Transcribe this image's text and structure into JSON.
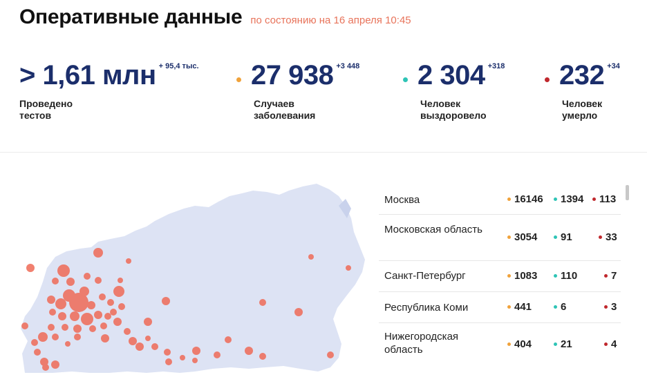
{
  "header": {
    "title": "Оперативные данные",
    "as_of": "по состоянию на 16 апреля 10:45"
  },
  "stats": [
    {
      "value": "> 1,61 млн",
      "delta": "+ 95,4 тыс.",
      "label1": "Проведено",
      "label2": "тестов",
      "dot_color": ""
    },
    {
      "value": "27 938",
      "delta": "+3 448",
      "label1": "Случаев",
      "label2": "заболевания",
      "dot_color": "#f0a23b"
    },
    {
      "value": "2 304",
      "delta": "+318",
      "label1": "Человек",
      "label2": "выздоровело",
      "dot_color": "#2ec4b6"
    },
    {
      "value": "232",
      "delta": "+34",
      "label1": "Человек",
      "label2": "умерло",
      "dot_color": "#c0282d"
    }
  ],
  "colors": {
    "accent_title": "#e8735a",
    "stat_number": "#1b2e6b",
    "cases": "#f0a23b",
    "recovered": "#2ec4b6",
    "deaths": "#c0282d",
    "map_land": "#dde3f4",
    "map_bubble": "#ef6b57"
  },
  "map": {
    "icon": "russia-map"
  },
  "regions": [
    {
      "name": "Москва",
      "cases": "16146",
      "recovered": "1394",
      "deaths": "113"
    },
    {
      "name": "Московская область",
      "cases": "3054",
      "recovered": "91",
      "deaths": "33"
    },
    {
      "name": "Санкт-Петербург",
      "cases": "1083",
      "recovered": "110",
      "deaths": "7"
    },
    {
      "name": "Республика Коми",
      "cases": "441",
      "recovered": "6",
      "deaths": "3"
    },
    {
      "name": "Нижегородская область",
      "cases": "404",
      "recovered": "21",
      "deaths": "4"
    }
  ]
}
